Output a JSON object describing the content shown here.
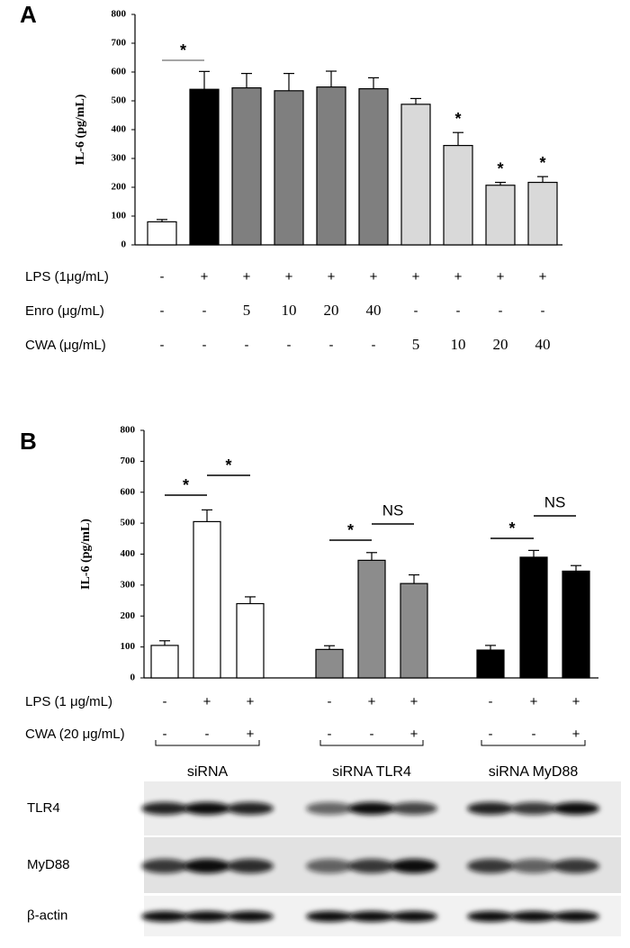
{
  "chart_data": [
    {
      "type": "bar",
      "panel": "A",
      "y_label": "IL-6 (pg/mL)",
      "categories": [
        null,
        null,
        null,
        null,
        null,
        null,
        null,
        null,
        null,
        null
      ],
      "values": [
        80,
        540,
        545,
        535,
        548,
        542,
        488,
        345,
        207,
        217
      ],
      "errors": [
        8,
        62,
        50,
        60,
        55,
        38,
        20,
        45,
        10,
        20
      ],
      "colors": [
        "#ffffff",
        "#000000",
        "#7f7f7f",
        "#7f7f7f",
        "#7f7f7f",
        "#7f7f7f",
        "#d9d9d9",
        "#d9d9d9",
        "#d9d9d9",
        "#d9d9d9"
      ],
      "ylim": [
        0,
        800
      ],
      "yticks": [
        0,
        100,
        200,
        300,
        400,
        500,
        600,
        700,
        800
      ],
      "conditions": [
        {
          "label": "LPS (1μg/mL)",
          "values": [
            "-",
            "+",
            "+",
            "+",
            "+",
            "+",
            "+",
            "+",
            "+",
            "+"
          ]
        },
        {
          "label": "Enro (μg/mL)",
          "values": [
            "-",
            "-",
            "5",
            "10",
            "20",
            "40",
            "-",
            "-",
            "-",
            "-"
          ]
        },
        {
          "label": "CWA (μg/mL)",
          "values": [
            "-",
            "-",
            "-",
            "-",
            "-",
            "-",
            "5",
            "10",
            "20",
            "40"
          ]
        }
      ],
      "annotations": [
        {
          "text": "*",
          "from": 0,
          "to": 1
        },
        {
          "text": "*",
          "bar": 7
        },
        {
          "text": "*",
          "bar": 8
        },
        {
          "text": "*",
          "bar": 9
        }
      ]
    },
    {
      "type": "bar",
      "panel": "B",
      "y_label": "IL-6 (pg/mL)",
      "categories": [
        null,
        null,
        null,
        null,
        null,
        null,
        null,
        null,
        null
      ],
      "values": [
        105,
        505,
        240,
        92,
        380,
        305,
        90,
        390,
        345
      ],
      "errors": [
        15,
        38,
        22,
        12,
        25,
        28,
        15,
        22,
        18
      ],
      "colors": [
        "#ffffff",
        "#ffffff",
        "#ffffff",
        "#8c8c8c",
        "#8c8c8c",
        "#8c8c8c",
        "#000000",
        "#000000",
        "#000000"
      ],
      "ylim": [
        0,
        800
      ],
      "yticks": [
        0,
        100,
        200,
        300,
        400,
        500,
        600,
        700,
        800
      ],
      "conditions": [
        {
          "label": "LPS (1 μg/mL)",
          "values": [
            "-",
            "+",
            "+",
            "-",
            "+",
            "+",
            "-",
            "+",
            "+"
          ]
        },
        {
          "label": "CWA (20 μg/mL)",
          "values": [
            "-",
            "-",
            "+",
            "-",
            "-",
            "+",
            "-",
            "-",
            "+"
          ]
        }
      ],
      "groups": [
        "siRNA",
        "siRNA TLR4",
        "siRNA MyD88"
      ],
      "annotations": [
        {
          "text": "*",
          "from": 0,
          "to": 1
        },
        {
          "text": "*",
          "from": 1,
          "to": 2
        },
        {
          "text": "*",
          "from": 3,
          "to": 4
        },
        {
          "text": "NS",
          "from": 4,
          "to": 5
        },
        {
          "text": "*",
          "from": 6,
          "to": 7
        },
        {
          "text": "NS",
          "from": 7,
          "to": 8
        }
      ]
    }
  ],
  "blot": {
    "rows": [
      "TLR4",
      "MyD88",
      "β-actin"
    ]
  }
}
